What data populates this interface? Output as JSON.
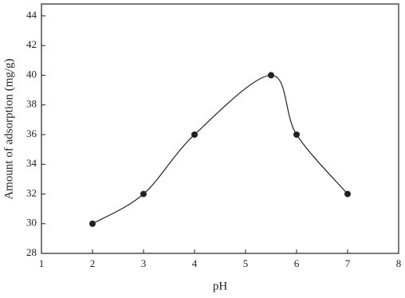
{
  "chart_data": {
    "type": "line",
    "x": [
      2,
      3,
      4,
      5.5,
      6,
      7
    ],
    "values": [
      30,
      32,
      36,
      40,
      36,
      32
    ],
    "color": "#222222",
    "smooth": true,
    "markers": true,
    "xlabel": "pH",
    "ylabel": "Amount of adsorption (mg/g)",
    "xlim": [
      1,
      8
    ],
    "xticks": [
      1,
      2,
      3,
      4,
      5,
      6,
      7,
      8
    ],
    "ylim": [
      28,
      44.8
    ],
    "yticks": [
      28,
      30,
      32,
      34,
      36,
      38,
      40,
      42,
      44
    ]
  }
}
